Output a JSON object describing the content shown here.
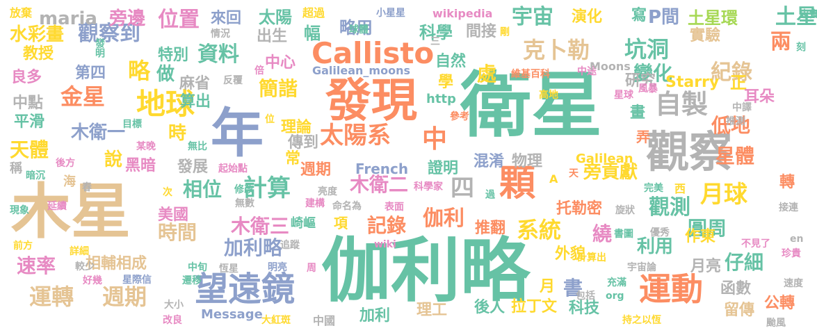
{
  "palette": {
    "teal": "#66c2a5",
    "orange": "#fc8d62",
    "blue": "#8da0cb",
    "pink": "#e78ac3",
    "green": "#a6d854",
    "yellow": "#ffd92f",
    "tan": "#e5c494",
    "gray": "#b3b3b3"
  },
  "words": [
    {
      "text": "衛星",
      "color": "teal"
    },
    {
      "text": "伽利略",
      "color": "teal"
    },
    {
      "text": "木星",
      "color": "tan"
    },
    {
      "text": "發現",
      "color": "orange"
    },
    {
      "text": "觀察",
      "color": "gray"
    },
    {
      "text": "年",
      "color": "blue"
    },
    {
      "text": "顆",
      "color": "orange"
    },
    {
      "text": "望遠鏡",
      "color": "blue"
    },
    {
      "text": "運動",
      "color": "orange"
    },
    {
      "text": "Callisto",
      "color": "orange"
    },
    {
      "text": "地球",
      "color": "yellow"
    },
    {
      "text": "太陽系",
      "color": "orange"
    },
    {
      "text": "自製",
      "color": "gray"
    },
    {
      "text": "運轉",
      "color": "tan"
    },
    {
      "text": "週期",
      "color": "tan"
    },
    {
      "text": "系統",
      "color": "yellow"
    },
    {
      "text": "計算",
      "color": "teal"
    },
    {
      "text": "伽利",
      "color": "orange"
    },
    {
      "text": "坑洞",
      "color": "teal"
    },
    {
      "text": "金星",
      "color": "orange"
    },
    {
      "text": "木衛一",
      "color": "blue"
    },
    {
      "text": "木衛二",
      "color": "pink"
    },
    {
      "text": "木衛三",
      "color": "pink"
    },
    {
      "text": "加利略",
      "color": "blue"
    },
    {
      "text": "月球",
      "color": "yellow"
    },
    {
      "text": "四",
      "color": "gray"
    },
    {
      "text": "中",
      "color": "orange"
    },
    {
      "text": "克卜勒",
      "color": "tan"
    },
    {
      "text": "觀察到",
      "color": "blue"
    },
    {
      "text": "位置",
      "color": "pink"
    },
    {
      "text": "變化",
      "color": "teal"
    },
    {
      "text": "紀錄",
      "color": "tan"
    },
    {
      "text": "宇宙",
      "color": "teal"
    },
    {
      "text": "資料",
      "color": "teal"
    },
    {
      "text": "觀測",
      "color": "teal"
    },
    {
      "text": "相位",
      "color": "teal"
    },
    {
      "text": "記錄",
      "color": "orange"
    },
    {
      "text": "時間",
      "color": "tan"
    },
    {
      "text": "速率",
      "color": "pink"
    },
    {
      "text": "天體",
      "color": "yellow"
    },
    {
      "text": "圓周",
      "color": "teal"
    },
    {
      "text": "兩",
      "color": "orange"
    },
    {
      "text": "土星",
      "color": "teal"
    },
    {
      "text": "星體",
      "color": "orange"
    },
    {
      "text": "低地",
      "color": "orange"
    },
    {
      "text": "略",
      "color": "yellow"
    },
    {
      "text": "簡諧",
      "color": "yellow"
    },
    {
      "text": "處",
      "color": "yellow"
    },
    {
      "text": "繞",
      "color": "pink"
    },
    {
      "text": "時",
      "color": "yellow"
    },
    {
      "text": "說",
      "color": "yellow"
    },
    {
      "text": "旁貢獻",
      "color": "yellow"
    },
    {
      "text": "仔細",
      "color": "teal"
    },
    {
      "text": "利用",
      "color": "teal"
    },
    {
      "text": "書",
      "color": "blue"
    },
    {
      "text": "maria",
      "color": "gray"
    },
    {
      "text": "旁邊",
      "color": "pink"
    },
    {
      "text": "出生",
      "color": "gray"
    },
    {
      "text": "太陽",
      "color": "teal"
    },
    {
      "text": "來回",
      "color": "blue"
    },
    {
      "text": "水彩畫",
      "color": "yellow"
    },
    {
      "text": "教授",
      "color": "yellow"
    },
    {
      "text": "良多",
      "color": "pink"
    },
    {
      "text": "第四",
      "color": "blue"
    },
    {
      "text": "特別",
      "color": "teal"
    },
    {
      "text": "做",
      "color": "teal"
    },
    {
      "text": "麻省",
      "color": "gray"
    },
    {
      "text": "算出",
      "color": "teal"
    },
    {
      "text": "中心",
      "color": "pink"
    },
    {
      "text": "幅",
      "color": "teal"
    },
    {
      "text": "略用",
      "color": "blue"
    },
    {
      "text": "科學",
      "color": "teal"
    },
    {
      "text": "間接",
      "color": "gray"
    },
    {
      "text": "自然",
      "color": "teal"
    },
    {
      "text": "演化",
      "color": "yellow"
    },
    {
      "text": "寫",
      "color": "teal"
    },
    {
      "text": "P間",
      "color": "blue"
    },
    {
      "text": "土星環",
      "color": "green"
    },
    {
      "text": "實驗",
      "color": "tan"
    },
    {
      "text": "研究",
      "color": "gray"
    },
    {
      "text": "Starry",
      "color": "yellow"
    },
    {
      "text": "正",
      "color": "yellow"
    },
    {
      "text": "耳朵",
      "color": "pink"
    },
    {
      "text": "中點",
      "color": "gray"
    },
    {
      "text": "平滑",
      "color": "teal"
    },
    {
      "text": "黑暗",
      "color": "pink"
    },
    {
      "text": "理論",
      "color": "yellow"
    },
    {
      "text": "傳到",
      "color": "gray"
    },
    {
      "text": "常",
      "color": "yellow"
    },
    {
      "text": "發展",
      "color": "gray"
    },
    {
      "text": "週期",
      "color": "orange"
    },
    {
      "text": "French",
      "color": "blue"
    },
    {
      "text": "證明",
      "color": "teal"
    },
    {
      "text": "混淆",
      "color": "blue"
    },
    {
      "text": "物理",
      "color": "gray"
    },
    {
      "text": "Galilean",
      "color": "yellow"
    },
    {
      "text": "畫",
      "color": "teal"
    },
    {
      "text": "弄",
      "color": "orange"
    },
    {
      "text": "轉",
      "color": "orange"
    },
    {
      "text": "托勒密",
      "color": "orange"
    },
    {
      "text": "推翻",
      "color": "orange"
    },
    {
      "text": "項",
      "color": "yellow"
    },
    {
      "text": "美國",
      "color": "pink"
    },
    {
      "text": "作東",
      "color": "yellow"
    },
    {
      "text": "月亮",
      "color": "gray"
    },
    {
      "text": "相輔相成",
      "color": "tan"
    },
    {
      "text": "外貌",
      "color": "yellow"
    },
    {
      "text": "月",
      "color": "yellow"
    },
    {
      "text": "科技",
      "color": "teal"
    },
    {
      "text": "後人",
      "color": "teal"
    },
    {
      "text": "拉丁文",
      "color": "yellow"
    },
    {
      "text": "理工",
      "color": "tan"
    },
    {
      "text": "加利",
      "color": "teal"
    },
    {
      "text": "留傳",
      "color": "tan"
    },
    {
      "text": "公轉",
      "color": "orange"
    },
    {
      "text": "函數",
      "color": "gray"
    },
    {
      "text": "Message",
      "color": "blue"
    },
    {
      "text": "中國",
      "color": "gray"
    },
    {
      "text": "放棄",
      "color": "yellow"
    },
    {
      "text": "超過",
      "color": "yellow"
    },
    {
      "text": "小星星",
      "color": "blue"
    },
    {
      "text": "wikipedia",
      "color": "pink"
    },
    {
      "text": "情況",
      "color": "gray"
    },
    {
      "text": "球體",
      "color": "teal"
    },
    {
      "text": "剛",
      "color": "yellow"
    },
    {
      "text": "忠實",
      "color": "teal"
    },
    {
      "text": "刻",
      "color": "teal"
    },
    {
      "text": "發明",
      "color": "teal"
    },
    {
      "text": "三",
      "color": "gray"
    },
    {
      "text": "Galilean_moons",
      "color": "blue"
    },
    {
      "text": "學",
      "color": "yellow"
    },
    {
      "text": "http",
      "color": "teal"
    },
    {
      "text": "維基百科",
      "color": "orange"
    },
    {
      "text": "中途",
      "color": "pink"
    },
    {
      "text": "Moons",
      "color": "gray"
    },
    {
      "text": "風暴",
      "color": "pink"
    },
    {
      "text": "反覆",
      "color": "gray"
    },
    {
      "text": "倍",
      "color": "pink"
    },
    {
      "text": "高地",
      "color": "yellow"
    },
    {
      "text": "參考",
      "color": "orange"
    },
    {
      "text": "中譯",
      "color": "gray"
    },
    {
      "text": "星球",
      "color": "pink"
    },
    {
      "text": "推測",
      "color": "gray"
    },
    {
      "text": "目標",
      "color": "teal"
    },
    {
      "text": "某晚",
      "color": "pink"
    },
    {
      "text": "無比",
      "color": "teal"
    },
    {
      "text": "位",
      "color": "yellow"
    },
    {
      "text": "後方",
      "color": "pink"
    },
    {
      "text": "稱",
      "color": "gray"
    },
    {
      "text": "暗沉",
      "color": "teal"
    },
    {
      "text": "起始點",
      "color": "pink"
    },
    {
      "text": "海",
      "color": "tan"
    },
    {
      "text": "春",
      "color": "gray"
    },
    {
      "text": "天",
      "color": "orange"
    },
    {
      "text": "A",
      "color": "yellow"
    },
    {
      "text": "西",
      "color": "yellow"
    },
    {
      "text": "次",
      "color": "yellow"
    },
    {
      "text": "修改",
      "color": "teal"
    },
    {
      "text": "無數",
      "color": "gray"
    },
    {
      "text": "亮度",
      "color": "gray"
    },
    {
      "text": "科學家",
      "color": "pink"
    },
    {
      "text": "過",
      "color": "teal"
    },
    {
      "text": "完美",
      "color": "teal"
    },
    {
      "text": "現象",
      "color": "teal"
    },
    {
      "text": "延續",
      "color": "pink"
    },
    {
      "text": "建構",
      "color": "pink"
    },
    {
      "text": "命名為",
      "color": "gray"
    },
    {
      "text": "表面",
      "color": "pink"
    },
    {
      "text": "旋狀",
      "color": "gray"
    },
    {
      "text": "接連",
      "color": "gray"
    },
    {
      "text": "崎嶇",
      "color": "teal"
    },
    {
      "text": "書圖",
      "color": "teal"
    },
    {
      "text": "優秀",
      "color": "gray"
    },
    {
      "text": "前方",
      "color": "yellow"
    },
    {
      "text": "追蹤",
      "color": "gray"
    },
    {
      "text": "不見了",
      "color": "pink"
    },
    {
      "text": "en",
      "color": "gray"
    },
    {
      "text": "詳細",
      "color": "yellow"
    },
    {
      "text": "wiki",
      "color": "pink"
    },
    {
      "text": "較少",
      "color": "gray"
    },
    {
      "text": "中旬",
      "color": "teal"
    },
    {
      "text": "明亮",
      "color": "blue"
    },
    {
      "text": "周",
      "color": "pink"
    },
    {
      "text": "計算出",
      "color": "yellow"
    },
    {
      "text": "宇宙論",
      "color": "gray"
    },
    {
      "text": "珍貴",
      "color": "pink"
    },
    {
      "text": "好幾",
      "color": "pink"
    },
    {
      "text": "星際信",
      "color": "blue"
    },
    {
      "text": "恆星",
      "color": "gray"
    },
    {
      "text": "遷移",
      "color": "teal"
    },
    {
      "text": "充滿",
      "color": "teal"
    },
    {
      "text": "速度",
      "color": "gray"
    },
    {
      "text": "包括",
      "color": "gray"
    },
    {
      "text": "org",
      "color": "teal"
    },
    {
      "text": "大小",
      "color": "gray"
    },
    {
      "text": "改良",
      "color": "pink"
    },
    {
      "text": "大紅斑",
      "color": "yellow"
    },
    {
      "text": "持之以恆",
      "color": "yellow"
    },
    {
      "text": "颱風",
      "color": "gray"
    }
  ]
}
